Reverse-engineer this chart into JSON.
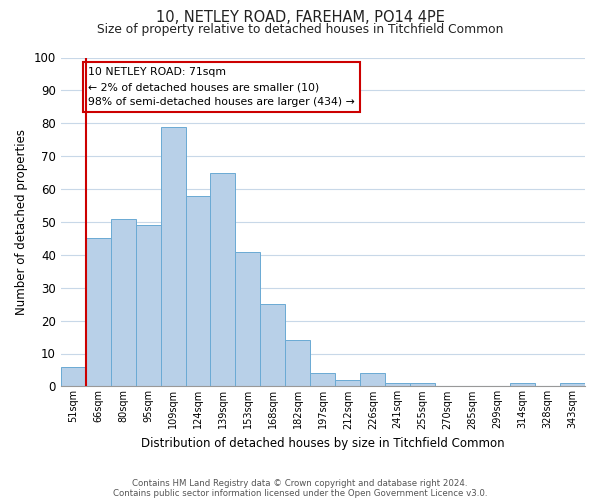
{
  "title": "10, NETLEY ROAD, FAREHAM, PO14 4PE",
  "subtitle": "Size of property relative to detached houses in Titchfield Common",
  "xlabel": "Distribution of detached houses by size in Titchfield Common",
  "ylabel": "Number of detached properties",
  "footnote1": "Contains HM Land Registry data © Crown copyright and database right 2024.",
  "footnote2": "Contains public sector information licensed under the Open Government Licence v3.0.",
  "bin_labels": [
    "51sqm",
    "66sqm",
    "80sqm",
    "95sqm",
    "109sqm",
    "124sqm",
    "139sqm",
    "153sqm",
    "168sqm",
    "182sqm",
    "197sqm",
    "212sqm",
    "226sqm",
    "241sqm",
    "255sqm",
    "270sqm",
    "285sqm",
    "299sqm",
    "314sqm",
    "328sqm",
    "343sqm"
  ],
  "bar_heights": [
    6,
    45,
    51,
    49,
    79,
    58,
    65,
    41,
    25,
    14,
    4,
    2,
    4,
    1,
    1,
    0,
    0,
    0,
    1,
    0,
    1
  ],
  "bar_color": "#b8d0e8",
  "bar_edge_color": "#6aaad4",
  "vline_x": 1,
  "vline_color": "#cc0000",
  "ylim": [
    0,
    100
  ],
  "annotation_text": "10 NETLEY ROAD: 71sqm\n← 2% of detached houses are smaller (10)\n98% of semi-detached houses are larger (434) →",
  "annotation_box_edgecolor": "#cc0000",
  "background_color": "#ffffff",
  "grid_color": "#c8d8e8"
}
